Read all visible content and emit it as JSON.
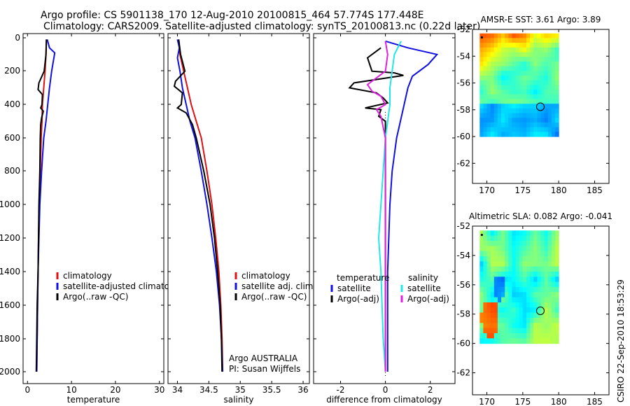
{
  "header": {
    "line1": "Argo profile: CS 5901138_170 12-Aug-2010 20100815_464 57.774S 177.448E",
    "line2": "Climatology: CARS2009. Satellite-adjusted climatology: synTS_20100813.nc (0.22d later)"
  },
  "credit": "CSIRO 22-Sep-2010 18:53:29",
  "colors": {
    "red": "#e01010",
    "blue": "#1010e0",
    "black": "#000000",
    "cyan": "#20e8e8",
    "magenta": "#e020e0"
  },
  "chart_data": [
    {
      "type": "line",
      "name": "temperature",
      "xlabel": "temperature",
      "ylabel": "",
      "xlim": [
        -1,
        31
      ],
      "ylim": [
        2050,
        -20
      ],
      "xticks": [
        "0",
        "10",
        "20",
        "30"
      ],
      "yticks": [
        "0",
        "200",
        "400",
        "600",
        "800",
        "1000",
        "1200",
        "1400",
        "1600",
        "1800",
        "2000"
      ],
      "legend": [
        "climatology",
        "satellite-adjusted climatology",
        "Argo(..raw -QC)"
      ],
      "series": [
        {
          "name": "climatology",
          "color": "red",
          "points": [
            [
              4.3,
              10
            ],
            [
              4.2,
              100
            ],
            [
              4.0,
              200
            ],
            [
              3.7,
              300
            ],
            [
              3.4,
              400
            ],
            [
              3.3,
              500
            ],
            [
              3.1,
              600
            ],
            [
              2.9,
              800
            ],
            [
              2.7,
              1000
            ],
            [
              2.5,
              1200
            ],
            [
              2.4,
              1400
            ],
            [
              2.3,
              1600
            ],
            [
              2.2,
              1800
            ],
            [
              2.1,
              2000
            ]
          ]
        },
        {
          "name": "satellite-adjusted climatology",
          "color": "blue",
          "points": [
            [
              4.5,
              10
            ],
            [
              5.0,
              60
            ],
            [
              6.2,
              90
            ],
            [
              5.5,
              200
            ],
            [
              5.0,
              300
            ],
            [
              4.6,
              400
            ],
            [
              4.2,
              500
            ],
            [
              3.7,
              600
            ],
            [
              3.2,
              800
            ],
            [
              2.8,
              1000
            ],
            [
              2.6,
              1200
            ],
            [
              2.4,
              1400
            ],
            [
              2.3,
              1600
            ],
            [
              2.2,
              1800
            ],
            [
              2.1,
              2000
            ]
          ]
        },
        {
          "name": "Argo(..raw -QC)",
          "color": "black",
          "points": [
            [
              4.3,
              10
            ],
            [
              4.2,
              100
            ],
            [
              3.8,
              200
            ],
            [
              2.6,
              270
            ],
            [
              2.4,
              310
            ],
            [
              3.4,
              340
            ],
            [
              3.3,
              400
            ],
            [
              3.0,
              420
            ],
            [
              3.6,
              440
            ],
            [
              3.2,
              480
            ],
            [
              3.0,
              520
            ],
            [
              2.9,
              600
            ],
            [
              2.8,
              800
            ],
            [
              2.6,
              1000
            ],
            [
              2.5,
              1200
            ],
            [
              2.4,
              1400
            ],
            [
              2.2,
              1600
            ],
            [
              2.1,
              1800
            ],
            [
              2.0,
              2000
            ]
          ]
        }
      ]
    },
    {
      "type": "line",
      "name": "salinity",
      "xlabel": "salinity",
      "ylabel": "",
      "xlim": [
        33.85,
        36.1
      ],
      "ylim": [
        2050,
        -20
      ],
      "xticks": [
        "34",
        "34.5",
        "35",
        "35.5",
        "36"
      ],
      "legend": [
        "climatology",
        "satellite adj. clim.",
        "Argo(..raw -QC)"
      ],
      "annotation": [
        "Argo AUSTRALIA",
        "PI: Susan Wijffels"
      ],
      "series": [
        {
          "name": "climatology",
          "color": "red",
          "points": [
            [
              34.02,
              10
            ],
            [
              34.04,
              100
            ],
            [
              34.1,
              200
            ],
            [
              34.16,
              300
            ],
            [
              34.22,
              400
            ],
            [
              34.3,
              500
            ],
            [
              34.38,
              600
            ],
            [
              34.47,
              800
            ],
            [
              34.55,
              1000
            ],
            [
              34.61,
              1200
            ],
            [
              34.66,
              1400
            ],
            [
              34.69,
              1600
            ],
            [
              34.71,
              1800
            ],
            [
              34.72,
              2000
            ]
          ]
        },
        {
          "name": "satellite adj. clim.",
          "color": "blue",
          "points": [
            [
              34.0,
              10
            ],
            [
              34.03,
              60
            ],
            [
              34.0,
              120
            ],
            [
              34.04,
              200
            ],
            [
              34.08,
              300
            ],
            [
              34.14,
              400
            ],
            [
              34.2,
              500
            ],
            [
              34.28,
              600
            ],
            [
              34.38,
              800
            ],
            [
              34.47,
              1000
            ],
            [
              34.55,
              1200
            ],
            [
              34.62,
              1400
            ],
            [
              34.67,
              1600
            ],
            [
              34.7,
              1800
            ],
            [
              34.72,
              2000
            ]
          ]
        },
        {
          "name": "Argo(..raw -QC)",
          "color": "black",
          "points": [
            [
              34.02,
              10
            ],
            [
              34.05,
              100
            ],
            [
              34.12,
              200
            ],
            [
              33.97,
              260
            ],
            [
              33.95,
              290
            ],
            [
              34.08,
              330
            ],
            [
              34.06,
              400
            ],
            [
              34.0,
              420
            ],
            [
              34.14,
              450
            ],
            [
              34.24,
              520
            ],
            [
              34.3,
              600
            ],
            [
              34.42,
              800
            ],
            [
              34.52,
              1000
            ],
            [
              34.59,
              1200
            ],
            [
              34.64,
              1400
            ],
            [
              34.68,
              1600
            ],
            [
              34.7,
              1800
            ],
            [
              34.71,
              2000
            ]
          ]
        }
      ]
    },
    {
      "type": "line",
      "name": "difference",
      "xlabel": "difference from climatology",
      "ylabel": "",
      "xlim": [
        -3.2,
        3.1
      ],
      "ylim": [
        2050,
        -20
      ],
      "xticks": [
        "-2",
        "0",
        "2"
      ],
      "legend_left": {
        "heading": "temperature",
        "entries": [
          "satellite",
          "Argo(-adj)"
        ]
      },
      "legend_right": {
        "heading": "salinity",
        "entries": [
          "satellite",
          "Argo(-adj)"
        ]
      },
      "series": [
        {
          "name": "temperature satellite",
          "color": "blue",
          "points": [
            [
              0.0,
              20
            ],
            [
              1.0,
              60
            ],
            [
              2.3,
              100
            ],
            [
              1.9,
              160
            ],
            [
              1.2,
              230
            ],
            [
              1.0,
              300
            ],
            [
              0.8,
              420
            ],
            [
              0.5,
              600
            ],
            [
              0.3,
              800
            ],
            [
              0.2,
              1000
            ],
            [
              0.1,
              1400
            ],
            [
              0.1,
              2000
            ]
          ]
        },
        {
          "name": "temperature Argo(-adj)",
          "color": "black",
          "points": [
            [
              -0.2,
              60
            ],
            [
              -0.8,
              120
            ],
            [
              -0.6,
              200
            ],
            [
              0.4,
              210
            ],
            [
              0.8,
              225
            ],
            [
              -1.4,
              270
            ],
            [
              -1.6,
              300
            ],
            [
              -0.4,
              330
            ],
            [
              -0.1,
              360
            ],
            [
              0.1,
              390
            ],
            [
              -0.9,
              420
            ],
            [
              -0.2,
              430
            ],
            [
              -0.3,
              470
            ],
            [
              0.0,
              500
            ],
            [
              0.0,
              600
            ],
            [
              0.0,
              800
            ],
            [
              0.0,
              1000
            ],
            [
              0.0,
              1400
            ],
            [
              0.0,
              1800
            ],
            [
              0.0,
              2000
            ]
          ]
        },
        {
          "name": "salinity satellite",
          "color": "cyan",
          "points": [
            [
              0.7,
              20
            ],
            [
              0.4,
              100
            ],
            [
              0.3,
              200
            ],
            [
              0.2,
              300
            ],
            [
              0.2,
              400
            ],
            [
              0.0,
              600
            ],
            [
              -0.1,
              800
            ],
            [
              -0.2,
              1000
            ],
            [
              -0.3,
              1200
            ],
            [
              -0.2,
              1400
            ],
            [
              -0.1,
              1800
            ],
            [
              0.0,
              2000
            ]
          ]
        },
        {
          "name": "salinity Argo(-adj)",
          "color": "magenta",
          "points": [
            [
              0.0,
              20
            ],
            [
              0.1,
              100
            ],
            [
              0.0,
              200
            ],
            [
              -0.8,
              280
            ],
            [
              -0.6,
              320
            ],
            [
              -0.2,
              350
            ],
            [
              0.0,
              400
            ],
            [
              -0.4,
              430
            ],
            [
              -0.2,
              470
            ],
            [
              0.0,
              600
            ],
            [
              0.0,
              800
            ],
            [
              0.0,
              2000
            ]
          ]
        }
      ]
    },
    {
      "type": "heatmap",
      "name": "sst-map",
      "title": "AMSR-E SST: 3.61  Argo: 3.89",
      "xlim": [
        168,
        187
      ],
      "ylim": [
        -63.5,
        -52
      ],
      "xticks": [
        "170",
        "175",
        "180",
        "185"
      ],
      "yticks": [
        "-52",
        "-54",
        "-56",
        "-58",
        "-60",
        "-62"
      ],
      "argo_position": [
        177.448,
        -57.774
      ]
    },
    {
      "type": "heatmap",
      "name": "sla-map",
      "title": "Altimetric SLA: 0.082  Argo: -0.041",
      "xlim": [
        168,
        187
      ],
      "ylim": [
        -63.5,
        -52
      ],
      "xticks": [
        "170",
        "175",
        "180",
        "185"
      ],
      "yticks": [
        "-52",
        "-54",
        "-56",
        "-58",
        "-60",
        "-62"
      ],
      "argo_position": [
        177.448,
        -57.774
      ]
    }
  ]
}
